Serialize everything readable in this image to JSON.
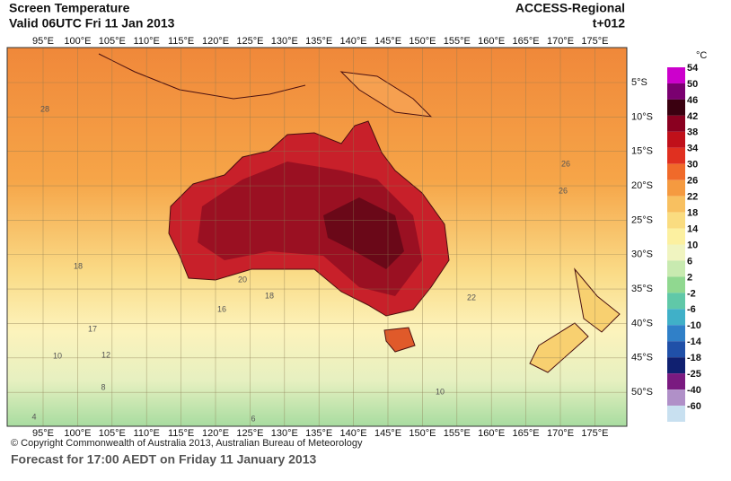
{
  "header": {
    "title": "Screen Temperature",
    "valid": "Valid 06UTC Fri 11 Jan 2013",
    "model": "ACCESS-Regional",
    "lead": "t+012"
  },
  "map": {
    "lon_labels": [
      "95°E",
      "100°E",
      "105°E",
      "110°E",
      "115°E",
      "120°E",
      "125°E",
      "130°E",
      "135°E",
      "140°E",
      "145°E",
      "150°E",
      "155°E",
      "160°E",
      "165°E",
      "170°E",
      "175°E"
    ],
    "lat_labels": [
      "5°S",
      "10°S",
      "15°S",
      "20°S",
      "25°S",
      "30°S",
      "35°S",
      "40°S",
      "45°S",
      "50°S"
    ],
    "contour_labels": [
      "28",
      "26",
      "26",
      "18",
      "20",
      "16",
      "17",
      "22",
      "18",
      "12",
      "10",
      "10",
      "8",
      "6",
      "4"
    ]
  },
  "legend": {
    "unit": "°C",
    "entries": [
      {
        "label": "54",
        "color": "#cc00cc"
      },
      {
        "label": "50",
        "color": "#7a0070"
      },
      {
        "label": "46",
        "color": "#3a0010"
      },
      {
        "label": "42",
        "color": "#8a0020"
      },
      {
        "label": "38",
        "color": "#c0101a"
      },
      {
        "label": "34",
        "color": "#e03020"
      },
      {
        "label": "30",
        "color": "#f06a2a"
      },
      {
        "label": "26",
        "color": "#f59a40"
      },
      {
        "label": "22",
        "color": "#f8c060"
      },
      {
        "label": "18",
        "color": "#fadc80"
      },
      {
        "label": "14",
        "color": "#fcf0a0"
      },
      {
        "label": "10",
        "color": "#f0f4c0"
      },
      {
        "label": "6",
        "color": "#c8eab0"
      },
      {
        "label": "2",
        "color": "#90d890"
      },
      {
        "label": "-2",
        "color": "#60c8a8"
      },
      {
        "label": "-6",
        "color": "#40b0c8"
      },
      {
        "label": "-10",
        "color": "#3080c8"
      },
      {
        "label": "-14",
        "color": "#2050a8"
      },
      {
        "label": "-18",
        "color": "#102070"
      },
      {
        "label": "-25",
        "color": "#7a1a80"
      },
      {
        "label": "-40",
        "color": "#b090c8"
      },
      {
        "label": "-60",
        "color": "#c8e0f0"
      }
    ]
  },
  "footer": {
    "copyright": "© Copyright Commonwealth of Australia 2013, Australian Bureau of Meteorology",
    "caption": "Forecast for 17:00 AEDT on Friday 11 January 2013"
  }
}
